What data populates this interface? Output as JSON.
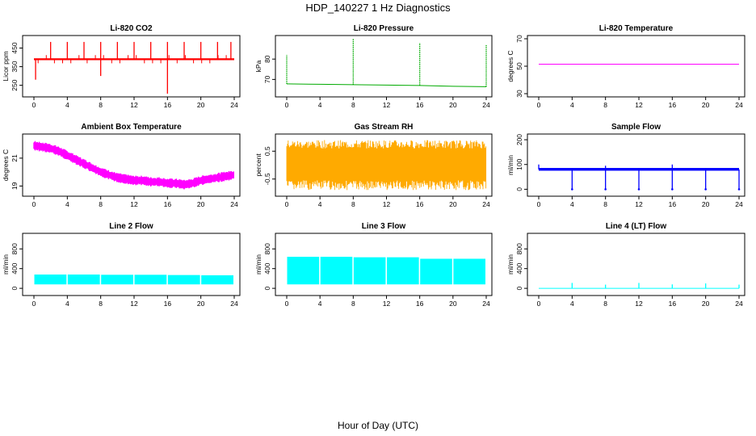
{
  "title": "HDP_140227  1 Hz Diagnostics",
  "xlabel": "Hour of Day (UTC)",
  "x_ticks": [
    0,
    4,
    8,
    12,
    16,
    20,
    24
  ],
  "chart_data": [
    {
      "type": "line",
      "title": "Li-820 CO2",
      "ylabel": "Licor ppm",
      "color": "#ff0000",
      "ylim": [
        205,
        500
      ],
      "yticks": [
        250,
        350,
        450
      ],
      "xlim": [
        0,
        24
      ],
      "baseline": 390,
      "band": [
        385,
        395
      ],
      "spikes": [
        {
          "x": 2.0,
          "y": 483
        },
        {
          "x": 4.0,
          "y": 483
        },
        {
          "x": 6.0,
          "y": 483
        },
        {
          "x": 8.0,
          "y": 483
        },
        {
          "x": 10.0,
          "y": 483
        },
        {
          "x": 12.0,
          "y": 483
        },
        {
          "x": 14.0,
          "y": 483
        },
        {
          "x": 16.0,
          "y": 483
        },
        {
          "x": 18.0,
          "y": 483
        },
        {
          "x": 20.0,
          "y": 483
        },
        {
          "x": 22.0,
          "y": 483
        },
        {
          "x": 23.6,
          "y": 483
        }
      ],
      "dips": [
        {
          "x": 8.0,
          "y": 300
        },
        {
          "x": 16.0,
          "y": 205
        },
        {
          "x": 0.2,
          "y": 280
        }
      ]
    },
    {
      "type": "line",
      "title": "Li-820 Pressure",
      "ylabel": "kPa",
      "color": "#00aa00",
      "ylim": [
        63,
        90
      ],
      "yticks": [
        70,
        80
      ],
      "xlim": [
        0,
        24
      ],
      "series": [
        {
          "name": "pressure",
          "x": [
            0,
            4,
            8,
            12,
            16,
            20,
            24
          ],
          "y": [
            67.8,
            67.6,
            67.4,
            67.2,
            67.0,
            66.6,
            66.4
          ]
        }
      ],
      "spikes": [
        {
          "x": 0.0,
          "y": 82
        },
        {
          "x": 8.0,
          "y": 90
        },
        {
          "x": 16.0,
          "y": 88
        },
        {
          "x": 24.0,
          "y": 87
        }
      ]
    },
    {
      "type": "line",
      "title": "Li-820 Temperature",
      "ylabel": "degrees C",
      "color": "#ff00ff",
      "ylim": [
        30,
        70
      ],
      "yticks": [
        30,
        50,
        70
      ],
      "xlim": [
        0,
        24
      ],
      "series": [
        {
          "name": "temperature",
          "x": [
            0,
            24
          ],
          "y": [
            51.5,
            51.5
          ]
        }
      ]
    },
    {
      "type": "area",
      "title": "Ambient Box Temperature",
      "ylabel": "degrees C",
      "color": "#ff00ff",
      "ylim": [
        18.5,
        22.5
      ],
      "yticks": [
        19,
        21
      ],
      "xlim": [
        0,
        24
      ],
      "series": [
        {
          "name": "ambient",
          "x": [
            0,
            1,
            2,
            3,
            4,
            5,
            6,
            7,
            8,
            9,
            10,
            11,
            12,
            13,
            14,
            15,
            16,
            17,
            18,
            19,
            20,
            21,
            22,
            23,
            24
          ],
          "y": [
            21.9,
            21.8,
            21.7,
            21.5,
            21.2,
            20.9,
            20.6,
            20.3,
            20.0,
            19.8,
            19.6,
            19.5,
            19.4,
            19.4,
            19.3,
            19.3,
            19.2,
            19.2,
            19.1,
            19.2,
            19.4,
            19.5,
            19.6,
            19.7,
            19.8
          ]
        }
      ],
      "band_width": 0.55
    },
    {
      "type": "area",
      "title": "Gas Stream RH",
      "ylabel": "percent",
      "color": "#ffaa00",
      "ylim": [
        -1.0,
        1.0
      ],
      "yticks": [
        -0.5,
        0.5
      ],
      "xlim": [
        0,
        24
      ],
      "series": [
        {
          "name": "rh",
          "x": [
            0,
            24
          ],
          "y": [
            0.0,
            0.0
          ]
        }
      ],
      "band": [
        -0.55,
        0.6
      ]
    },
    {
      "type": "line",
      "title": "Sample Flow",
      "ylabel": "ml/min",
      "color": "#0000ff",
      "ylim": [
        -15,
        210
      ],
      "yticks": [
        0,
        100,
        200
      ],
      "xlim": [
        0,
        24
      ],
      "baseline": 80,
      "band": [
        75,
        86
      ],
      "dips": [
        {
          "x": 4.0,
          "y": 0
        },
        {
          "x": 8.0,
          "y": 0
        },
        {
          "x": 12.0,
          "y": 0
        },
        {
          "x": 16.0,
          "y": 0
        },
        {
          "x": 20.0,
          "y": 0
        },
        {
          "x": 24.0,
          "y": 0
        }
      ],
      "spikes": [
        {
          "x": 0.0,
          "y": 100
        },
        {
          "x": 8.0,
          "y": 95
        },
        {
          "x": 16.0,
          "y": 100
        }
      ]
    },
    {
      "type": "area",
      "title": "Line 2 Flow",
      "ylabel": "ml/min",
      "color": "#00ffff",
      "ylim": [
        -80,
        1050
      ],
      "yticks": [
        0,
        400,
        800
      ],
      "xlim": [
        0,
        24
      ],
      "segments": [
        {
          "x0": 0.05,
          "x1": 3.9,
          "lo": 80,
          "hi": 280
        },
        {
          "x0": 4.05,
          "x1": 7.9,
          "lo": 80,
          "hi": 280
        },
        {
          "x0": 8.05,
          "x1": 11.9,
          "lo": 80,
          "hi": 275
        },
        {
          "x0": 12.05,
          "x1": 15.9,
          "lo": 80,
          "hi": 275
        },
        {
          "x0": 16.05,
          "x1": 19.9,
          "lo": 80,
          "hi": 270
        },
        {
          "x0": 20.05,
          "x1": 23.9,
          "lo": 80,
          "hi": 265
        }
      ]
    },
    {
      "type": "area",
      "title": "Line 3 Flow",
      "ylabel": "ml/min",
      "color": "#00ffff",
      "ylim": [
        -80,
        1050
      ],
      "yticks": [
        0,
        400,
        800
      ],
      "xlim": [
        0,
        24
      ],
      "segments": [
        {
          "x0": 0.05,
          "x1": 3.9,
          "lo": 80,
          "hi": 640
        },
        {
          "x0": 4.05,
          "x1": 7.9,
          "lo": 80,
          "hi": 640
        },
        {
          "x0": 8.05,
          "x1": 11.9,
          "lo": 80,
          "hi": 630
        },
        {
          "x0": 12.05,
          "x1": 15.9,
          "lo": 80,
          "hi": 630
        },
        {
          "x0": 16.05,
          "x1": 19.9,
          "lo": 80,
          "hi": 600
        },
        {
          "x0": 20.05,
          "x1": 23.9,
          "lo": 80,
          "hi": 600
        }
      ]
    },
    {
      "type": "line",
      "title": "Line 4 (LT) Flow",
      "ylabel": "ml/min",
      "color": "#00ffff",
      "ylim": [
        -80,
        1050
      ],
      "yticks": [
        0,
        400,
        800
      ],
      "xlim": [
        0,
        24
      ],
      "baseline": 0,
      "spikes": [
        {
          "x": 4.0,
          "y": 110
        },
        {
          "x": 8.0,
          "y": 75
        },
        {
          "x": 12.0,
          "y": 110
        },
        {
          "x": 16.0,
          "y": 80
        },
        {
          "x": 20.0,
          "y": 100
        },
        {
          "x": 24.0,
          "y": 75
        }
      ]
    }
  ]
}
